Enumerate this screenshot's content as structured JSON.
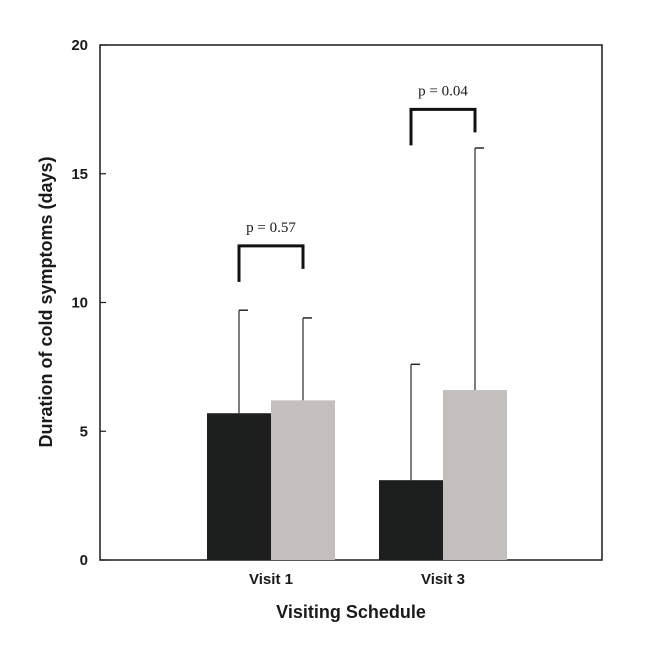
{
  "chart_data": {
    "type": "bar",
    "categories": [
      "Visit 1",
      "Visit 3"
    ],
    "series": [
      {
        "values": [
          5.7,
          3.1
        ],
        "errors": [
          9.7,
          7.6
        ],
        "color": "#1c1f1e"
      },
      {
        "values": [
          6.2,
          6.6
        ],
        "errors": [
          9.4,
          16.0
        ],
        "color": "#c4bfbd"
      }
    ],
    "xlabel": "Visiting Schedule",
    "ylabel": "Duration of cold symptoms (days)",
    "ylim": [
      0,
      20
    ],
    "yticks": [
      "0",
      "5",
      "10",
      "15",
      "20"
    ],
    "annotations": [
      {
        "category": "Visit 1",
        "text": "p = 0.57",
        "bracket_level": 12.2
      },
      {
        "category": "Visit 3",
        "text": "p = 0.04",
        "bracket_level": 17.5
      }
    ],
    "grid": false,
    "legend": "none"
  }
}
